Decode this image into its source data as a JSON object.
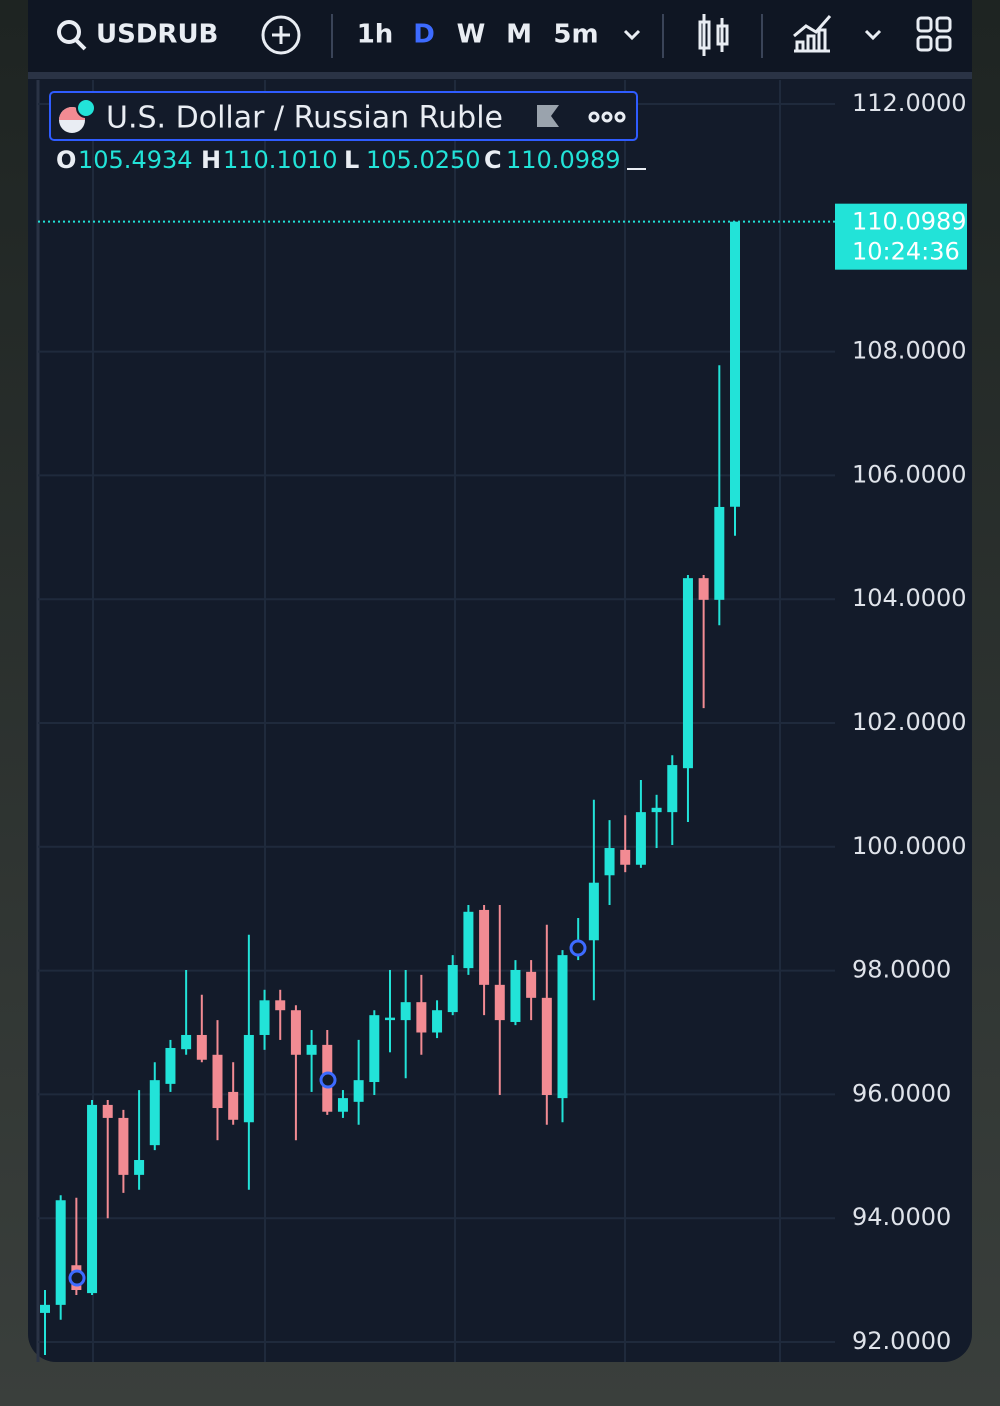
{
  "toolbar": {
    "symbol": "USDRUB",
    "intervals": [
      "1h",
      "D",
      "W",
      "M",
      "5m"
    ],
    "active_interval": 1
  },
  "chart_data": {
    "type": "candlestick",
    "title": "U.S. Dollar / Russian Ruble",
    "ohlc_header": [
      {
        "key": "O",
        "label": "105.4934"
      },
      {
        "key": "H",
        "label": "110.1010"
      },
      {
        "key": "L",
        "label": "105.0250"
      },
      {
        "key": "C",
        "label": "110.0989"
      }
    ],
    "price_tag": {
      "label": "110.0989",
      "time": "10:24:36"
    },
    "up_color": "#22e3d8",
    "down_color": "#f28b93",
    "open": [
      92.47,
      92.6,
      93.24,
      92.79,
      95.83,
      95.62,
      94.7,
      95.18,
      96.17,
      96.73,
      96.96,
      96.64,
      96.04,
      95.55,
      96.96,
      97.52,
      97.36,
      96.64,
      96.8,
      95.72,
      95.88,
      96.2,
      97.2,
      97.2,
      97.49,
      97.0,
      97.33,
      98.04,
      98.98,
      97.77,
      97.17,
      97.98,
      97.56,
      95.94,
      98.33,
      98.49,
      99.54,
      99.95,
      99.71,
      100.56,
      100.56,
      101.27,
      104.34,
      103.99,
      105.4934
    ],
    "high": [
      92.84,
      94.37,
      94.33,
      95.91,
      95.91,
      95.75,
      96.07,
      96.52,
      96.88,
      98.01,
      97.61,
      97.2,
      96.52,
      98.58,
      97.69,
      97.69,
      97.44,
      97.04,
      97.04,
      96.07,
      96.88,
      97.36,
      98.01,
      98.01,
      97.93,
      97.52,
      98.25,
      99.06,
      99.06,
      99.06,
      98.17,
      98.17,
      98.74,
      98.33,
      98.85,
      100.76,
      100.43,
      100.51,
      101.08,
      100.84,
      101.48,
      104.39,
      104.39,
      107.78,
      110.101
    ],
    "low": [
      91.79,
      92.36,
      92.76,
      92.76,
      94.0,
      94.41,
      94.46,
      95.1,
      96.04,
      96.64,
      96.52,
      95.26,
      95.51,
      94.46,
      96.72,
      96.88,
      95.26,
      96.04,
      95.67,
      95.62,
      95.51,
      95.99,
      96.68,
      96.26,
      96.64,
      96.91,
      97.28,
      97.93,
      97.28,
      95.99,
      97.12,
      97.2,
      95.51,
      95.55,
      98.17,
      97.52,
      99.06,
      99.59,
      99.66,
      99.98,
      100.03,
      100.4,
      102.24,
      103.58,
      105.025
    ],
    "close": [
      92.6,
      94.29,
      92.84,
      95.83,
      95.62,
      94.7,
      94.94,
      96.23,
      96.75,
      96.96,
      96.56,
      95.78,
      95.59,
      96.96,
      97.52,
      97.36,
      96.64,
      96.8,
      95.72,
      95.94,
      96.23,
      97.28,
      97.24,
      97.49,
      97.0,
      97.36,
      98.09,
      98.95,
      97.77,
      97.2,
      98.01,
      97.56,
      95.99,
      98.25,
      98.41,
      99.42,
      99.98,
      99.71,
      100.56,
      100.63,
      101.32,
      104.34,
      103.99,
      105.49,
      110.0989
    ],
    "ylim": [
      92,
      112
    ],
    "yticks": [
      {
        "value": 92,
        "label": "92.0000"
      },
      {
        "value": 94,
        "label": "94.0000"
      },
      {
        "value": 96,
        "label": "96.0000"
      },
      {
        "value": 98,
        "label": "98.0000"
      },
      {
        "value": 100,
        "label": "100.0000"
      },
      {
        "value": 102,
        "label": "102.0000"
      },
      {
        "value": 104,
        "label": "104.0000"
      },
      {
        "value": 106,
        "label": "106.0000"
      },
      {
        "value": 108,
        "label": "108.0000"
      },
      {
        "value": 112,
        "label": "112.0000"
      }
    ],
    "grid": true
  }
}
